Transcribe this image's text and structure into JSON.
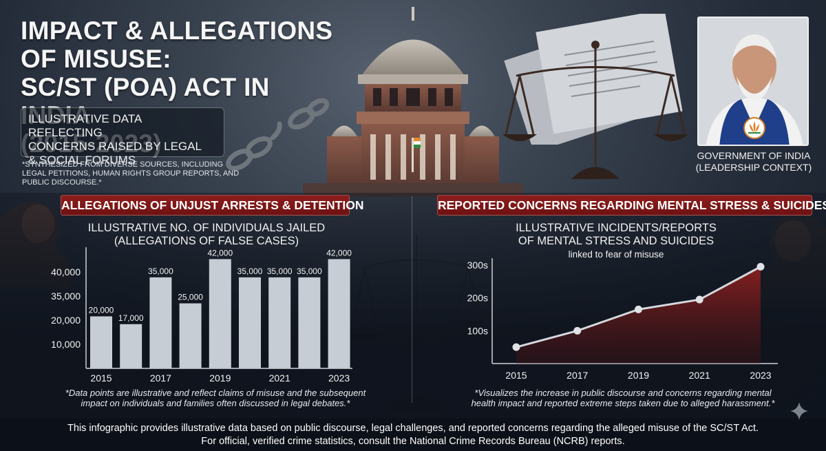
{
  "header": {
    "title_line1": "IMPACT & ALLEGATIONS OF MISUSE:",
    "title_line2": "SC/ST (POA) ACT IN INDIA",
    "title_line3": "(2015-2023)",
    "subtitle_line1": "ILLUSTRATIVE DATA REFLECTING",
    "subtitle_line2": "CONCERNS RAISED BY LEGAL",
    "subtitle_line3": "& SOCIAL FORUMS",
    "source_note_line1": "*SYNTHESIZED FROM DIVERSE SOURCES, INCLUDING",
    "source_note_line2": "LEGAL PETITIONS, HUMAN RIGHTS GROUP REPORTS, AND",
    "source_note_line3": "PUBLIC DISCOURSE.*"
  },
  "leader": {
    "caption_line1": "GOVERNMENT OF INDIA",
    "caption_line2": "(LEADERSHIP CONTEXT)"
  },
  "sections": {
    "left_banner": "ALLEGATIONS OF UNJUST ARRESTS & DETENTION",
    "right_banner": "REPORTED CONCERNS REGARDING MENTAL STRESS & SUICIDES"
  },
  "chart_data": [
    {
      "type": "bar",
      "title_line1": "ILLUSTRATIVE NO. OF INDIVIDUALS JAILED",
      "title_line2": "(ALLEGATIONS OF FALSE CASES)",
      "categories": [
        "2015",
        "2016",
        "2017",
        "2018",
        "2019",
        "2020",
        "2021",
        "2022",
        "2023"
      ],
      "x_tick_labels": [
        "2015",
        "2017",
        "2019",
        "2021",
        "2023"
      ],
      "values": [
        20000,
        17000,
        35000,
        25000,
        42000,
        35000,
        35000,
        35000,
        42000
      ],
      "data_labels": [
        "20,000",
        "17,000",
        "35,000",
        "25,000",
        "42,000",
        "35,000",
        "35,000",
        "35,000",
        "42,000"
      ],
      "y_tick_labels": [
        "10,000",
        "20,000",
        "35,000",
        "40,000"
      ],
      "grid": false,
      "bar_color": "#c7cdd4",
      "footnote_line1": "*Data points are illustrative and reflect claims of misuse and the subsequent",
      "footnote_line2": "impact on individuals and families often discussed in legal debates.*"
    },
    {
      "type": "area",
      "title_line1": "ILLUSTRATIVE INCIDENTS/REPORTS",
      "title_line2": "OF MENTAL STRESS AND SUICIDES",
      "title_line3": "linked to fear of misuse",
      "x": [
        "2015",
        "2017",
        "2019",
        "2021",
        "2023"
      ],
      "values": [
        50,
        100,
        165,
        195,
        295
      ],
      "y_tick_labels": [
        "100s",
        "200s",
        "300s"
      ],
      "ylim": [
        0,
        300
      ],
      "grid": false,
      "line_color": "#d4d8dd",
      "fill_color": "#7a1a1a",
      "footnote_line1": "*Visualizes the increase in public discourse and concerns regarding mental",
      "footnote_line2": "health impact and reported extreme steps taken due to alleged harassment.*"
    }
  ],
  "footer": {
    "line1": "This infographic provides illustrative data based on public discourse, legal challenges, and reported concerns regarding the alleged misuse of the SC/ST Act.",
    "line2": "For official, verified crime statistics, consult the National Crime Records Bureau (NCRB) reports."
  }
}
